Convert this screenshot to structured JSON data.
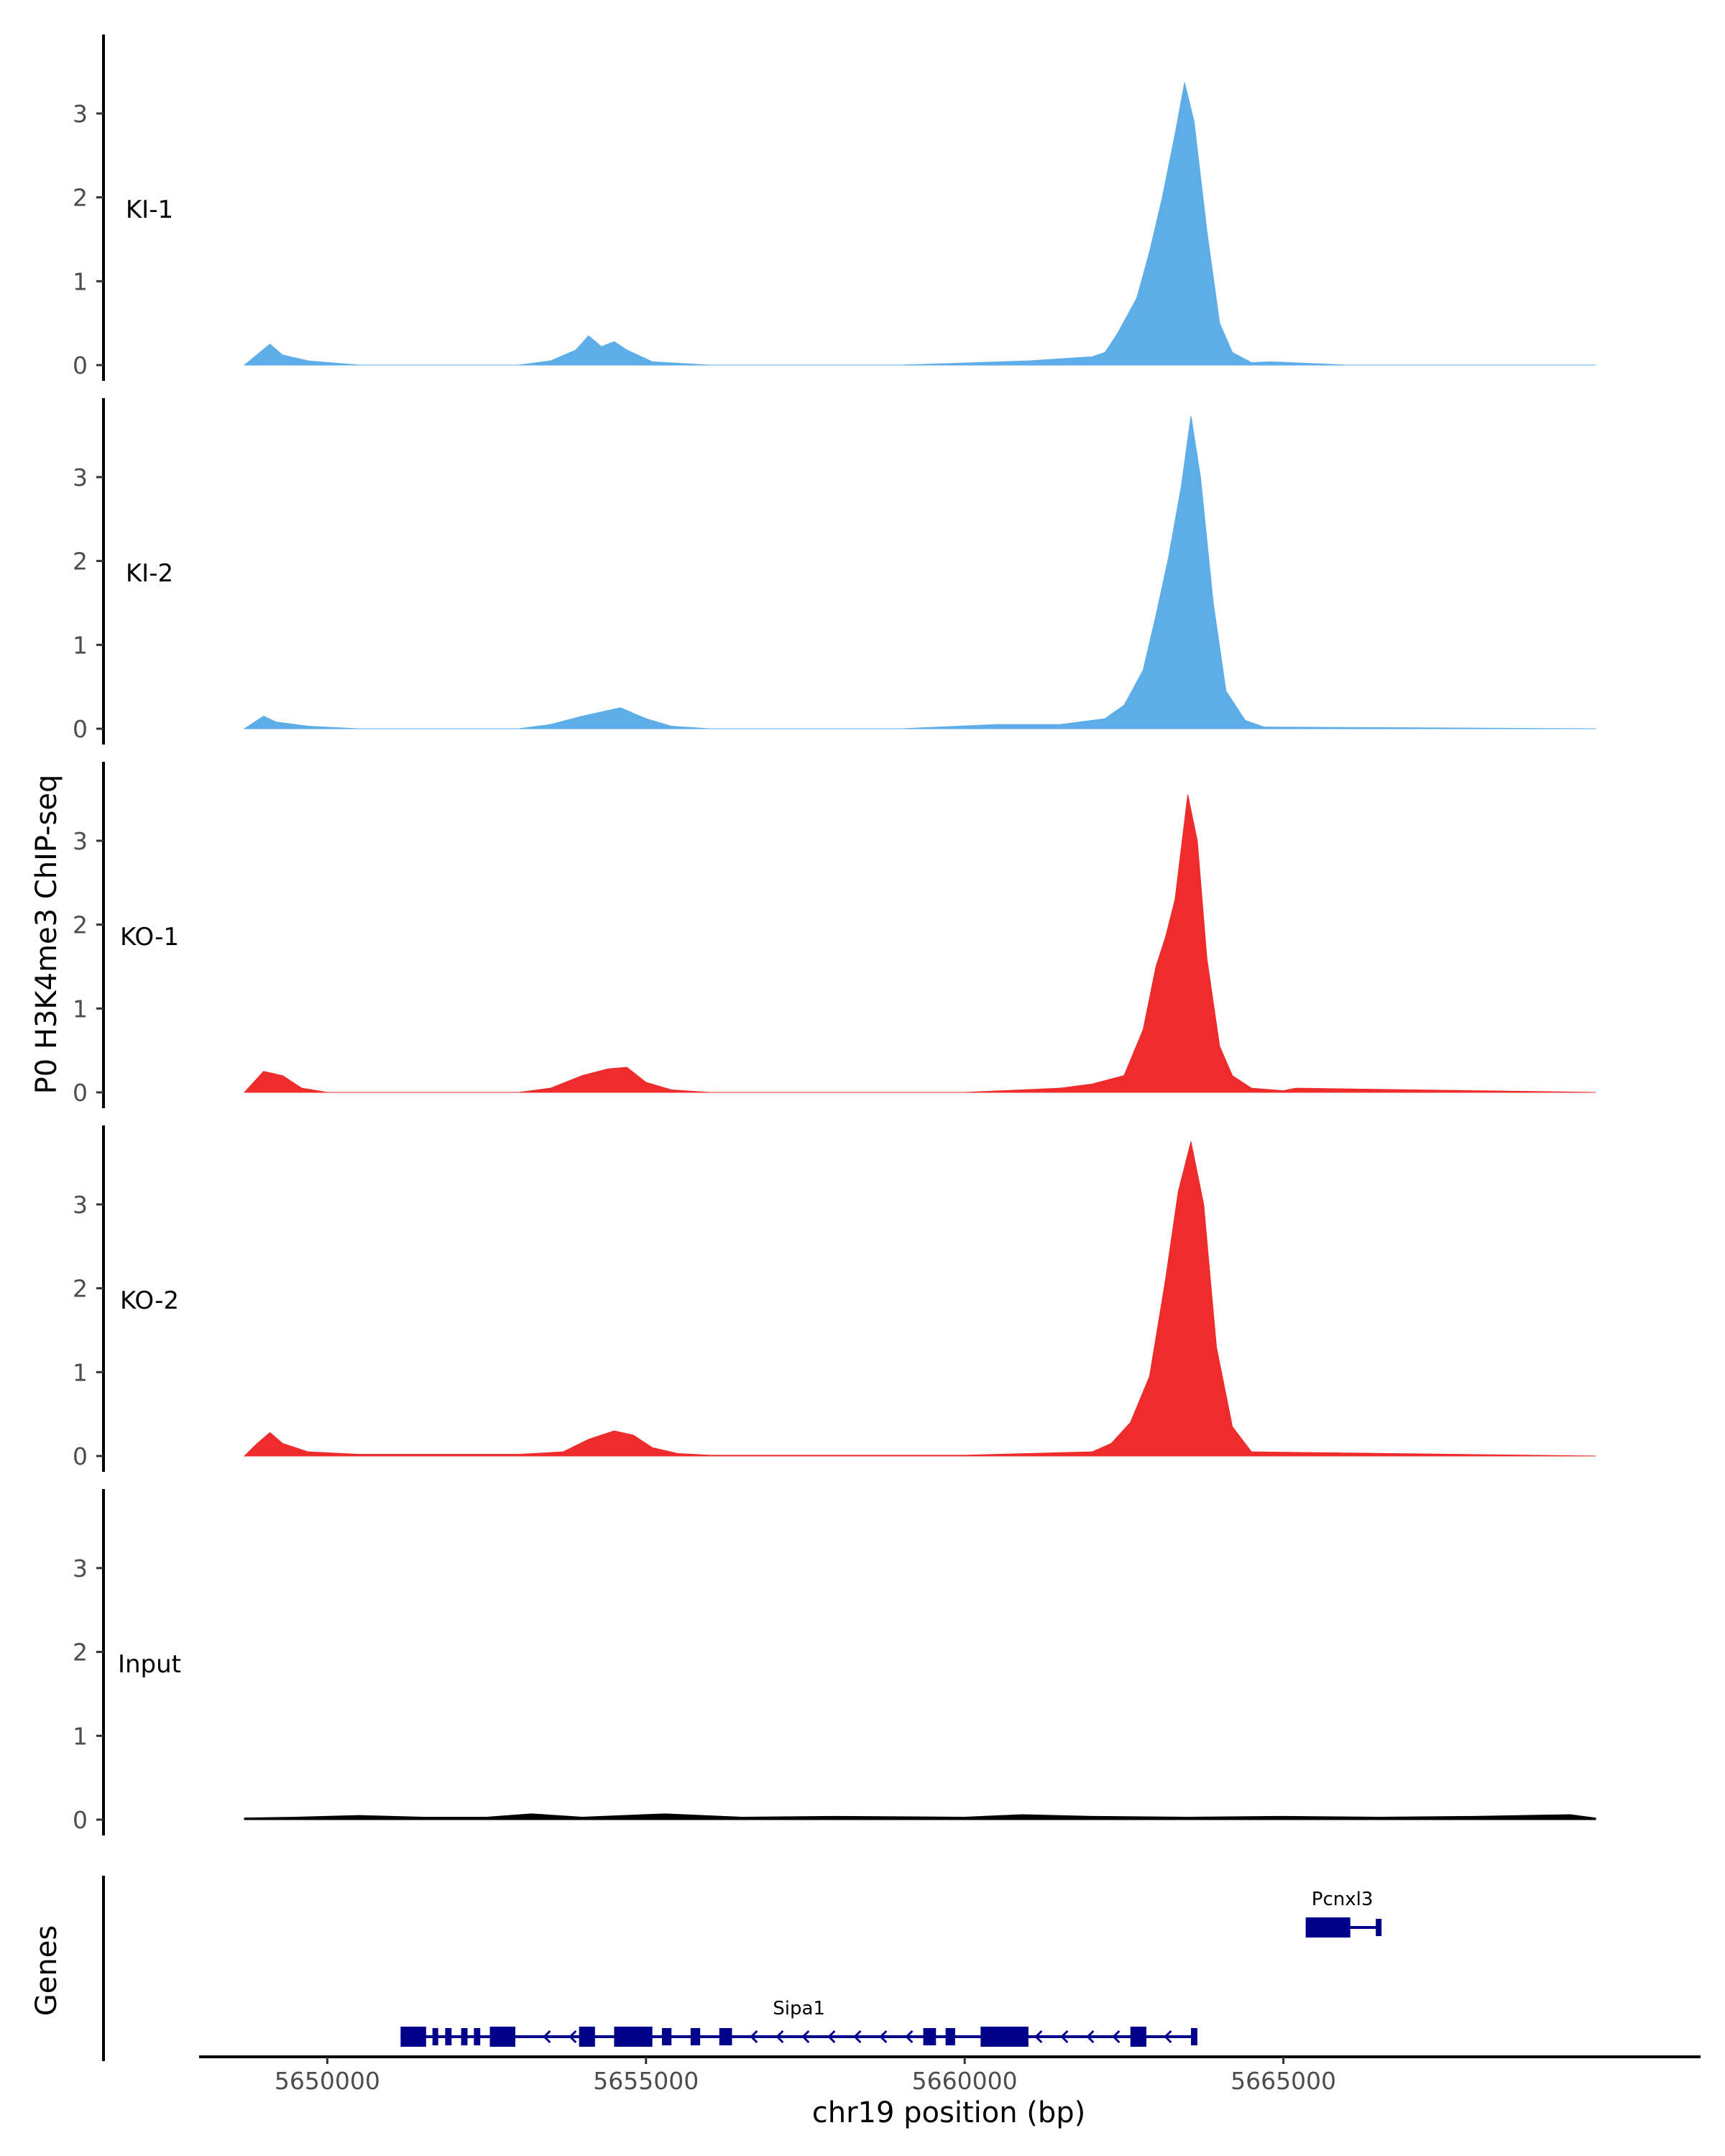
{
  "figure": {
    "ylabel": "P0 H3K4me3 ChIP-seq",
    "genes_label": "Genes",
    "xlabel": "chr19 position (bp)"
  },
  "chart_data": {
    "type": "area",
    "x_range": [
      5648000,
      5671500
    ],
    "ylim": [
      0,
      3.9
    ],
    "y_ticks": [
      0,
      1,
      2,
      3
    ],
    "x_ticks": [
      5650000,
      5655000,
      5660000,
      5665000
    ],
    "x_tick_labels": [
      "5650000",
      "5655000",
      "5660000",
      "5665000"
    ],
    "colors": {
      "KI": "#5DADE8",
      "KO": "#EE2C2C",
      "Input": "#000000",
      "genes": "#00008B"
    },
    "tracks": [
      {
        "name": "KI-1",
        "color": "#5DADE8",
        "x": [
          5648700,
          5649100,
          5649300,
          5649700,
          5650500,
          5653000,
          5653500,
          5653900,
          5654100,
          5654300,
          5654500,
          5654700,
          5655100,
          5656000,
          5659000,
          5661000,
          5662000,
          5662200,
          5662400,
          5662700,
          5662900,
          5663100,
          5663300,
          5663450,
          5663600,
          5663800,
          5664000,
          5664200,
          5664500,
          5664800,
          5666000,
          5669900
        ],
        "y": [
          0,
          0.25,
          0.12,
          0.05,
          0,
          0,
          0.05,
          0.18,
          0.35,
          0.22,
          0.28,
          0.18,
          0.04,
          0,
          0,
          0.05,
          0.1,
          0.15,
          0.38,
          0.8,
          1.35,
          2.0,
          2.75,
          3.37,
          2.9,
          1.6,
          0.5,
          0.15,
          0.03,
          0.04,
          0,
          0
        ]
      },
      {
        "name": "KI-2",
        "color": "#5DADE8",
        "x": [
          5648700,
          5649000,
          5649200,
          5649700,
          5650500,
          5653000,
          5653500,
          5654000,
          5654300,
          5654600,
          5655000,
          5655400,
          5656000,
          5659000,
          5660500,
          5661500,
          5662200,
          5662500,
          5662800,
          5663000,
          5663200,
          5663400,
          5663550,
          5663700,
          5663900,
          5664100,
          5664400,
          5664700,
          5669900
        ],
        "y": [
          0,
          0.15,
          0.08,
          0.03,
          0,
          0,
          0.05,
          0.15,
          0.2,
          0.25,
          0.12,
          0.03,
          0,
          0,
          0.05,
          0.05,
          0.12,
          0.28,
          0.7,
          1.35,
          2.05,
          2.9,
          3.73,
          3.0,
          1.5,
          0.45,
          0.1,
          0.02,
          0
        ]
      },
      {
        "name": "KO-1",
        "color": "#EE2C2C",
        "x": [
          5648700,
          5649000,
          5649300,
          5649600,
          5650000,
          5653000,
          5653500,
          5654000,
          5654400,
          5654700,
          5655000,
          5655400,
          5656000,
          5660000,
          5661500,
          5662000,
          5662500,
          5662800,
          5663000,
          5663150,
          5663300,
          5663500,
          5663650,
          5663800,
          5664000,
          5664200,
          5664500,
          5665000,
          5665200,
          5669900
        ],
        "y": [
          0,
          0.25,
          0.2,
          0.05,
          0,
          0,
          0.05,
          0.2,
          0.28,
          0.3,
          0.12,
          0.03,
          0,
          0,
          0.05,
          0.1,
          0.2,
          0.75,
          1.5,
          1.85,
          2.3,
          3.55,
          3.0,
          1.6,
          0.55,
          0.2,
          0.05,
          0.02,
          0.05,
          0
        ]
      },
      {
        "name": "KO-2",
        "color": "#EE2C2C",
        "x": [
          5648700,
          5648900,
          5649100,
          5649300,
          5649700,
          5650500,
          5653000,
          5653700,
          5654100,
          5654500,
          5654800,
          5655100,
          5655500,
          5656000,
          5660000,
          5661000,
          5662000,
          5662300,
          5662600,
          5662900,
          5663150,
          5663350,
          5663550,
          5663750,
          5663950,
          5664200,
          5664500,
          5669900
        ],
        "y": [
          0,
          0.15,
          0.28,
          0.15,
          0.05,
          0.02,
          0.02,
          0.05,
          0.2,
          0.3,
          0.25,
          0.1,
          0.03,
          0.01,
          0.01,
          0.03,
          0.05,
          0.15,
          0.4,
          0.95,
          2.1,
          3.15,
          3.75,
          3.0,
          1.3,
          0.35,
          0.05,
          0
        ]
      },
      {
        "name": "Input",
        "color": "#000000",
        "x": [
          5648700,
          5649500,
          5650500,
          5651500,
          5652500,
          5653200,
          5654000,
          5655300,
          5656500,
          5658000,
          5660000,
          5660900,
          5662000,
          5663500,
          5665000,
          5666500,
          5668000,
          5669500,
          5669900
        ],
        "y": [
          0.02,
          0.03,
          0.05,
          0.03,
          0.03,
          0.07,
          0.03,
          0.07,
          0.03,
          0.04,
          0.03,
          0.06,
          0.04,
          0.03,
          0.04,
          0.03,
          0.04,
          0.06,
          0.02
        ]
      }
    ],
    "genes": [
      {
        "name": "Sipa1",
        "start": 5651150,
        "end": 5663650,
        "strand": "-",
        "exons": [
          [
            5651150,
            5651550
          ],
          [
            5651650,
            5651700
          ],
          [
            5651850,
            5651950
          ],
          [
            5652100,
            5652200
          ],
          [
            5652300,
            5652400
          ],
          [
            5652550,
            5652950
          ],
          [
            5653950,
            5654200
          ],
          [
            5654500,
            5655100
          ],
          [
            5655250,
            5655400
          ],
          [
            5655700,
            5655850
          ],
          [
            5656150,
            5656350
          ],
          [
            5659350,
            5659550
          ],
          [
            5659700,
            5659850
          ],
          [
            5660250,
            5661000
          ],
          [
            5662600,
            5662850
          ],
          [
            5663550,
            5663650
          ]
        ]
      },
      {
        "name": "Pcnxl3",
        "start": 5665350,
        "end": 5666500,
        "strand": "-",
        "exons": [
          [
            5665350,
            5666050
          ],
          [
            5666450,
            5666500
          ]
        ]
      }
    ]
  }
}
